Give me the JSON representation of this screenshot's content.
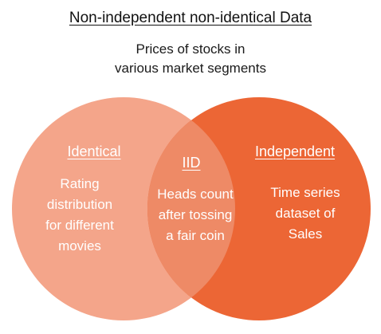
{
  "title": "Non-independent non-identical Data",
  "subtitle": {
    "line1": "Prices of stocks in",
    "line2": "various market segments"
  },
  "left_set": {
    "heading": "Identical",
    "lines": [
      "Rating",
      "distribution",
      "for different",
      "movies"
    ],
    "color": "#F4A58A"
  },
  "intersection": {
    "heading": "IID",
    "lines": [
      "Heads count",
      "after tossing",
      "a fair coin"
    ],
    "color": "#EE8A66"
  },
  "right_set": {
    "heading": "Independent",
    "lines": [
      "Time series",
      "dataset of",
      "Sales"
    ],
    "color": "#EC6635"
  }
}
